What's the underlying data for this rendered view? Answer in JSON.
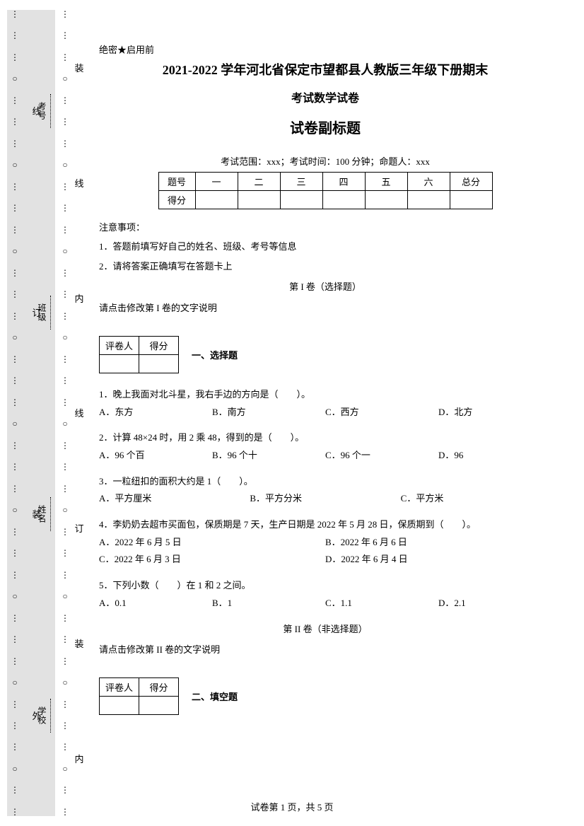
{
  "margin": {
    "left_markers": [
      "线",
      "订",
      "装",
      "外"
    ],
    "right_markers": [
      "装",
      "线",
      "内",
      "线",
      "订",
      "装",
      "内"
    ],
    "form_labels": [
      "考号",
      "班级",
      "姓名",
      "学校"
    ]
  },
  "header": {
    "secret": "绝密★启用前",
    "title_line1": "2021-2022 学年河北省保定市望都县人教版三年级下册期末",
    "title_line2": "考试数学试卷",
    "subtitle": "试卷副标题",
    "scope": "考试范围：xxx；考试时间：100 分钟；命题人：xxx"
  },
  "score_table": {
    "cols": [
      "题号",
      "一",
      "二",
      "三",
      "四",
      "五",
      "六",
      "总分"
    ],
    "row_label": "得分"
  },
  "notice": {
    "heading": "注意事项：",
    "items": [
      "1．答题前填写好自己的姓名、班级、考号等信息",
      "2．请将答案正确填写在答题卡上"
    ]
  },
  "part1": {
    "label": "第 I 卷（选择题）",
    "instruction": "请点击修改第 I 卷的文字说明",
    "grader_cols": [
      "评卷人",
      "得分"
    ],
    "section_heading": "一、选择题"
  },
  "questions": [
    {
      "stem": "1．晚上我面对北斗星，我右手边的方向是（　　）。",
      "layout": "four",
      "opts": [
        "A．东方",
        "B．南方",
        "C．西方",
        "D．北方"
      ]
    },
    {
      "stem": "2．计算 48×24 时，用 2 乘 48，得到的是（　　）。",
      "layout": "four",
      "opts": [
        "A．96 个百",
        "B．96 个十",
        "C．96 个一",
        "D．96"
      ]
    },
    {
      "stem": "3．一粒纽扣的面积大约是 1（　　）。",
      "layout": "three",
      "opts": [
        "A．平方厘米",
        "B．平方分米",
        "C．平方米"
      ]
    },
    {
      "stem": "4．李奶奶去超市买面包，保质期是 7 天，生产日期是 2022 年 5 月 28 日，保质期到（　　）。",
      "layout": "two",
      "opts": [
        "A．2022 年 6 月 5 日",
        "B．2022 年 6 月 6 日",
        "C．2022 年 6 月 3 日",
        "D．2022 年 6 月 4 日"
      ]
    },
    {
      "stem": "5．下列小数（　　）在 1 和 2 之间。",
      "layout": "four",
      "opts": [
        "A．0.1",
        "B．1",
        "C．1.1",
        "D．2.1"
      ]
    }
  ],
  "part2": {
    "label": "第 II 卷（非选择题）",
    "instruction": "请点击修改第 II 卷的文字说明",
    "grader_cols": [
      "评卷人",
      "得分"
    ],
    "section_heading": "二、填空题"
  },
  "footer": "试卷第 1 页，共 5 页"
}
